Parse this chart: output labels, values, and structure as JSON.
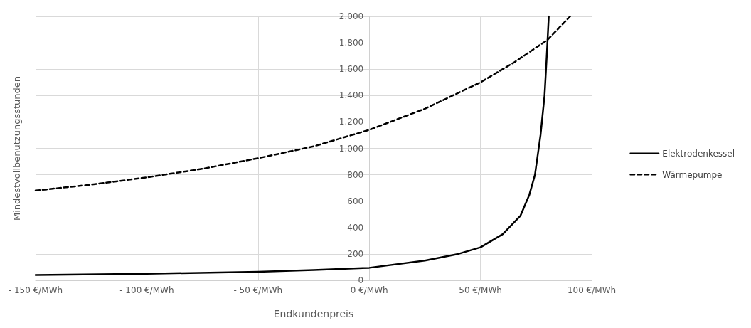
{
  "chart_data": {
    "type": "line",
    "xlabel": "Endkundenpreis",
    "ylabel": "Mindestvollbenutzungsstunden",
    "xlim": [
      -150,
      100
    ],
    "ylim": [
      0,
      2000
    ],
    "xticks": [
      {
        "value": -150,
        "label": "- 150 €/MWh"
      },
      {
        "value": -100,
        "label": "- 100 €/MWh"
      },
      {
        "value": -50,
        "label": "- 50 €/MWh"
      },
      {
        "value": 0,
        "label": "0 €/MWh"
      },
      {
        "value": 50,
        "label": "50 €/MWh"
      },
      {
        "value": 100,
        "label": "100 €/MWh"
      }
    ],
    "yticks": [
      0,
      200,
      400,
      600,
      800,
      {
        "value": 1000,
        "label": "1.000"
      },
      {
        "value": 1200,
        "label": "1.200"
      },
      {
        "value": 1400,
        "label": "1.400"
      },
      {
        "value": 1600,
        "label": "1.600"
      },
      {
        "value": 1800,
        "label": "1.800"
      },
      {
        "value": 2000,
        "label": "2.000"
      }
    ],
    "grid": true,
    "legend": "right",
    "marker": "none",
    "series": [
      {
        "name": "Elektrodenkessel",
        "color": "#000000",
        "line_style": "solid",
        "x": [
          -150,
          -100,
          -50,
          -25,
          0,
          25,
          40,
          50,
          60,
          68,
          72,
          74.5,
          77,
          78.8,
          79.8,
          80.7
        ],
        "values": [
          40,
          50,
          65,
          78,
          95,
          150,
          200,
          250,
          350,
          490,
          650,
          800,
          1100,
          1400,
          1700,
          2000
        ]
      },
      {
        "name": "Wärmepumpe",
        "color": "#000000",
        "line_style": "dashed",
        "x": [
          -150,
          -125,
          -100,
          -75,
          -50,
          -25,
          0,
          25,
          50,
          65,
          80,
          90.3
        ],
        "values": [
          680,
          725,
          780,
          845,
          925,
          1015,
          1140,
          1300,
          1500,
          1650,
          1820,
          2000
        ]
      }
    ]
  }
}
